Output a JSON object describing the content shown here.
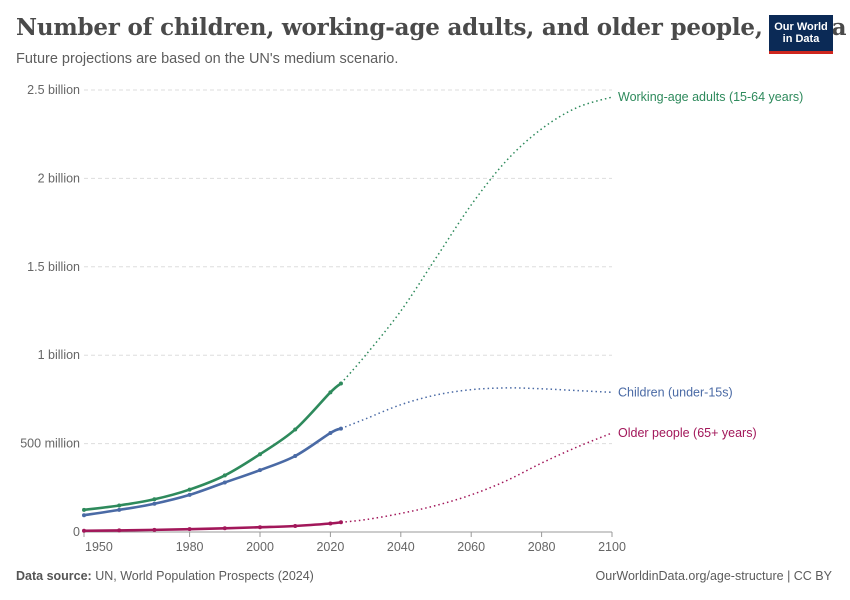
{
  "header": {
    "title": "Number of children, working-age adults, and older people, Africa",
    "subtitle": "Future projections are based on the UN's medium scenario."
  },
  "logo": {
    "line1": "Our World",
    "line2": "in Data"
  },
  "footer": {
    "source_label": "Data source:",
    "source_text": "UN, World Population Prospects (2024)",
    "url": "OurWorldinData.org/age-structure | CC BY"
  },
  "chart_data": {
    "type": "line",
    "title": "Number of children, working-age adults, and older people, Africa",
    "xlim": [
      1950,
      2100
    ],
    "ylim": [
      0,
      2500000000
    ],
    "x_ticks": [
      1950,
      1980,
      2000,
      2020,
      2040,
      2060,
      2080,
      2100
    ],
    "y_ticks": [
      {
        "value": 0,
        "label": "0"
      },
      {
        "value": 500000000,
        "label": "500 million"
      },
      {
        "value": 1000000000,
        "label": "1 billion"
      },
      {
        "value": 1500000000,
        "label": "1.5 billion"
      },
      {
        "value": 2000000000,
        "label": "2 billion"
      },
      {
        "value": 2500000000,
        "label": "2.5 billion"
      }
    ],
    "grid": true,
    "legend_placement": "right (labels at line ends)",
    "projection_start": 2023,
    "series": [
      {
        "name": "Working-age adults (15-64 years)",
        "color": "#2e8a5c",
        "x": [
          1950,
          1960,
          1970,
          1980,
          1990,
          2000,
          2010,
          2020,
          2023,
          2030,
          2040,
          2050,
          2060,
          2070,
          2080,
          2090,
          2100
        ],
        "y": [
          125000000,
          150000000,
          185000000,
          240000000,
          320000000,
          440000000,
          580000000,
          790000000,
          840000000,
          1000000000,
          1250000000,
          1550000000,
          1850000000,
          2100000000,
          2280000000,
          2400000000,
          2460000000
        ]
      },
      {
        "name": "Children (under-15s)",
        "color": "#4a6aa5",
        "x": [
          1950,
          1960,
          1970,
          1980,
          1990,
          2000,
          2010,
          2020,
          2023,
          2030,
          2040,
          2050,
          2060,
          2070,
          2080,
          2090,
          2100
        ],
        "y": [
          95000000,
          125000000,
          160000000,
          210000000,
          280000000,
          350000000,
          430000000,
          560000000,
          585000000,
          640000000,
          720000000,
          775000000,
          805000000,
          815000000,
          810000000,
          800000000,
          790000000
        ]
      },
      {
        "name": "Older people (65+ years)",
        "color": "#a2175a",
        "x": [
          1950,
          1960,
          1970,
          1980,
          1990,
          2000,
          2010,
          2020,
          2023,
          2030,
          2040,
          2050,
          2060,
          2070,
          2080,
          2090,
          2100
        ],
        "y": [
          7000000,
          9000000,
          12000000,
          16000000,
          21000000,
          27000000,
          34000000,
          48000000,
          55000000,
          70000000,
          105000000,
          150000000,
          210000000,
          290000000,
          390000000,
          480000000,
          560000000
        ]
      }
    ]
  }
}
